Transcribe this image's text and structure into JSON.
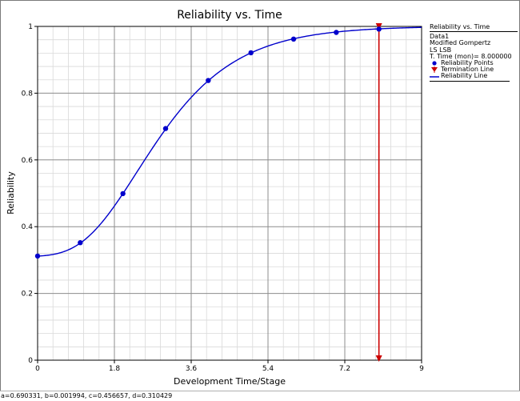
{
  "chart_data": {
    "type": "line",
    "title": "Reliability vs. Time",
    "xlabel": "Development Time/Stage",
    "ylabel": "Reliability",
    "xlim": [
      0,
      9
    ],
    "ylim": [
      0,
      1
    ],
    "x_ticks": [
      "0",
      "1.8",
      "3.6",
      "5.4",
      "7.2",
      "9"
    ],
    "y_ticks": [
      "0",
      "0.2",
      "0.4",
      "0.6",
      "0.8",
      "1"
    ],
    "grid": true,
    "legend_position": "right",
    "series": [
      {
        "name": "Reliability Points",
        "kind": "points",
        "color": "#0000cc",
        "x": [
          0,
          1,
          2,
          3,
          4,
          5,
          6,
          7,
          8
        ],
        "y": [
          0.312,
          0.352,
          0.499,
          0.694,
          0.838,
          0.921,
          0.962,
          0.982,
          0.992
        ]
      },
      {
        "name": "Reliability Line",
        "kind": "line",
        "color": "#0000cc",
        "model": "modified_gompertz",
        "params": {
          "a": 0.690331,
          "b": 0.001994,
          "c": 0.456657,
          "d": 0.310429
        }
      },
      {
        "name": "Termination Line",
        "kind": "vline",
        "color": "#cc0000",
        "x": 8
      }
    ]
  },
  "legend": {
    "title": "Reliability vs. Time",
    "lines": [
      "Data1",
      "Modified Gompertz",
      "LS LSB",
      "T. Time (mon)= 8.000000"
    ],
    "entries": [
      "Reliability Points",
      "Termination Line",
      "Reliability Line"
    ]
  },
  "status_text": "a=0.690331, b=0.001994, c=0.456657, d=0.310429"
}
